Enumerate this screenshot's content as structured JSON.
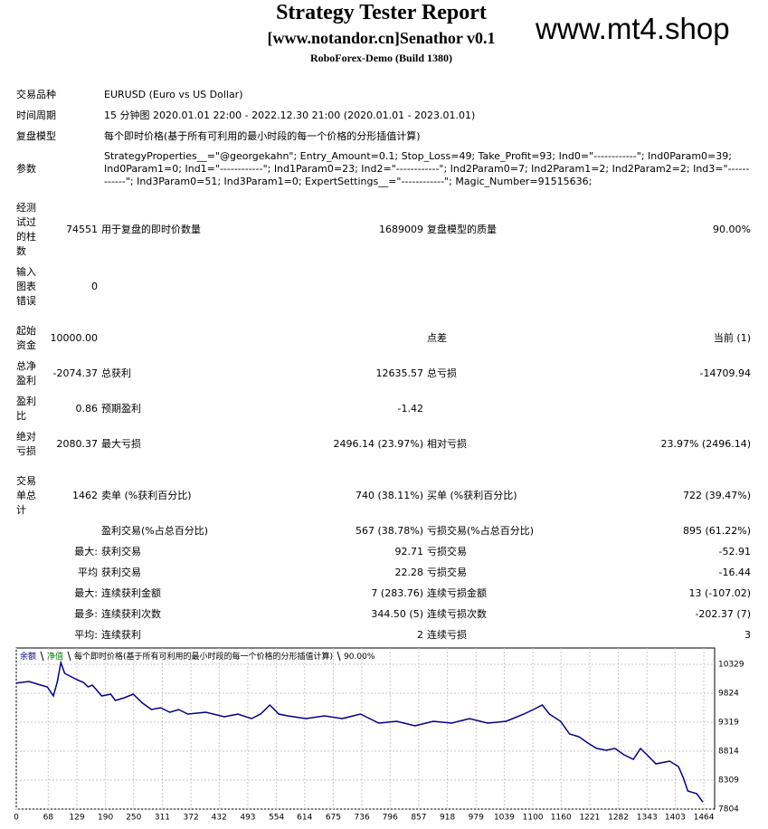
{
  "header": {
    "title": "Strategy Tester Report",
    "subtitle": "[www.notandor.cn]Senathor v0.1",
    "server": "RoboForex-Demo (Build 1380)",
    "watermark": "www.mt4.shop"
  },
  "info": {
    "rows": [
      {
        "label": "交易品种",
        "value": "EURUSD (Euro vs US Dollar)"
      },
      {
        "label": "时间周期",
        "value": "15 分钟图 2020.01.01 22:00 - 2022.12.30 21:00 (2020.01.01 - 2023.01.01)"
      },
      {
        "label": "复盘模型",
        "value": "每个即时价格(基于所有可利用的最小时段的每一个价格的分形插值计算)"
      },
      {
        "label": "参数",
        "value": "StrategyProperties__=\"@georgekahn\"; Entry_Amount=0.1; Stop_Loss=49; Take_Profit=93; Ind0=\"------------\"; Ind0Param0=39; Ind0Param1=0; Ind1=\"------------\"; Ind1Param0=23; Ind2=\"------------\"; Ind2Param0=7; Ind2Param1=2; Ind2Param2=2; Ind3=\"------------\"; Ind3Param0=51; Ind3Param1=0; ExpertSettings__=\"------------\"; Magic_Number=91515636;"
      }
    ]
  },
  "stats": {
    "rows": [
      [
        "经测试过的柱数",
        "74551",
        "用于复盘的即时价数量",
        "1689009",
        "复盘模型的质量",
        "90.00%"
      ],
      [
        "输入图表错误",
        "0"
      ],
      [
        "起始资金",
        "10000.00",
        null,
        null,
        "点差",
        "当前 (1)"
      ],
      [
        "总净盈利",
        "-2074.37",
        "总获利",
        "12635.57",
        "总亏损",
        "-14709.94"
      ],
      [
        "盈利比",
        "0.86",
        "预期盈利",
        "-1.42"
      ],
      [
        "绝对亏损",
        "2080.37",
        "最大亏损",
        "2496.14 (23.97%)",
        "相对亏损",
        "23.97% (2496.14)"
      ],
      [
        "交易单总计",
        "1462",
        "卖单 (%获利百分比)",
        "740 (38.11%)",
        "买单 (%获利百分比)",
        "722 (39.47%)"
      ],
      [
        null,
        null,
        "盈利交易(%占总百分比)",
        "567 (38.78%)",
        "亏损交易(%占总百分比)",
        "895 (61.22%)"
      ],
      [
        null,
        "最大:",
        "获利交易",
        "92.71",
        "亏损交易",
        "-52.91"
      ],
      [
        null,
        "平均",
        "获利交易",
        "22.28",
        "亏损交易",
        "-16.44"
      ],
      [
        null,
        "最大:",
        "连续获利金额",
        "7 (283.76)",
        "连续亏损金额",
        "13 (-107.02)"
      ],
      [
        null,
        "最多:",
        "连续获利次数",
        "344.50 (5)",
        "连续亏损次数",
        "-202.37 (7)"
      ],
      [
        null,
        "平均:",
        "连续获利",
        "2",
        "连续亏损",
        "3"
      ]
    ]
  },
  "chart_data": {
    "type": "line",
    "model": "每个即时价格(基于所有可利用的最小时段的每一个价格的分形插值计算)",
    "quality": "90.00%",
    "equity": {
      "name": "净值",
      "color": "#008000"
    },
    "x": [
      0,
      27,
      52,
      66,
      79,
      87,
      95,
      103,
      114,
      129,
      143,
      153,
      162,
      182,
      201,
      211,
      230,
      249,
      269,
      288,
      307,
      327,
      346,
      365,
      404,
      443,
      472,
      501,
      520,
      540,
      559,
      578,
      617,
      656,
      694,
      733,
      772,
      810,
      849,
      888,
      927,
      965,
      1004,
      1043,
      1081,
      1101,
      1120,
      1135,
      1159,
      1178,
      1198,
      1217,
      1236,
      1256,
      1275,
      1294,
      1314,
      1329,
      1343,
      1362,
      1391,
      1410,
      1420,
      1430,
      1449,
      1462
    ],
    "series": [
      {
        "name": "余额",
        "color": "#00008b",
        "values": [
          10000,
          10029,
          9966,
          9935,
          9777,
          10013,
          10361,
          10171,
          10124,
          10061,
          10013,
          9935,
          9966,
          9777,
          9808,
          9698,
          9745,
          9808,
          9650,
          9540,
          9572,
          9493,
          9540,
          9461,
          9493,
          9414,
          9461,
          9382,
          9461,
          9619,
          9461,
          9430,
          9382,
          9430,
          9382,
          9461,
          9303,
          9335,
          9256,
          9335,
          9303,
          9382,
          9303,
          9335,
          9461,
          9540,
          9619,
          9461,
          9335,
          9114,
          9067,
          8956,
          8862,
          8830,
          8862,
          8751,
          8672,
          8862,
          8751,
          8593,
          8640,
          8546,
          8357,
          8120,
          8073,
          7926
        ]
      }
    ],
    "xlim": [
      0,
      1487
    ],
    "ylim": [
      7804,
      10613
    ],
    "xticks": [
      0,
      68,
      129,
      190,
      250,
      311,
      372,
      432,
      493,
      554,
      614,
      675,
      736,
      796,
      857,
      918,
      979,
      1039,
      1100,
      1160,
      1221,
      1282,
      1343,
      1403,
      1464
    ],
    "yticks": [
      7804,
      8309,
      8814,
      9319,
      9824,
      10329
    ],
    "grid": true
  }
}
